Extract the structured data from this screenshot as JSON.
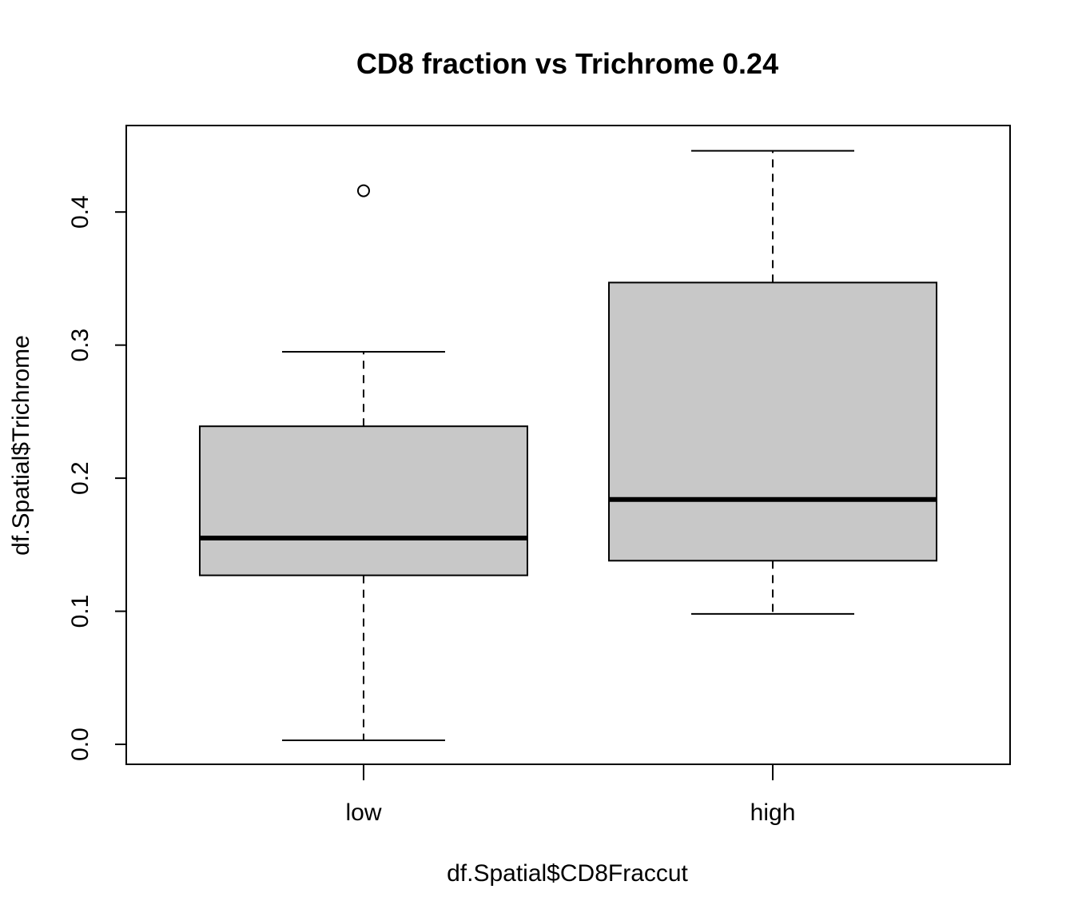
{
  "chart_data": {
    "type": "boxplot",
    "title": "CD8 fraction vs Trichrome 0.24",
    "xlabel": "df.Spatial$CD8Fraccut",
    "ylabel": "df.Spatial$Trichrome",
    "ylim": [
      -0.015,
      0.465
    ],
    "y_ticks": [
      "0.0",
      "0.1",
      "0.2",
      "0.3",
      "0.4"
    ],
    "grid": false,
    "box_fill": "#c8c8c8",
    "categories": [
      "low",
      "high"
    ],
    "boxes": [
      {
        "category": "low",
        "whisker_low": 0.003,
        "q1": 0.127,
        "median": 0.155,
        "q3": 0.239,
        "whisker_high": 0.295,
        "outliers": [
          0.416
        ]
      },
      {
        "category": "high",
        "whisker_low": 0.098,
        "q1": 0.138,
        "median": 0.184,
        "q3": 0.347,
        "whisker_high": 0.446,
        "outliers": []
      }
    ]
  }
}
